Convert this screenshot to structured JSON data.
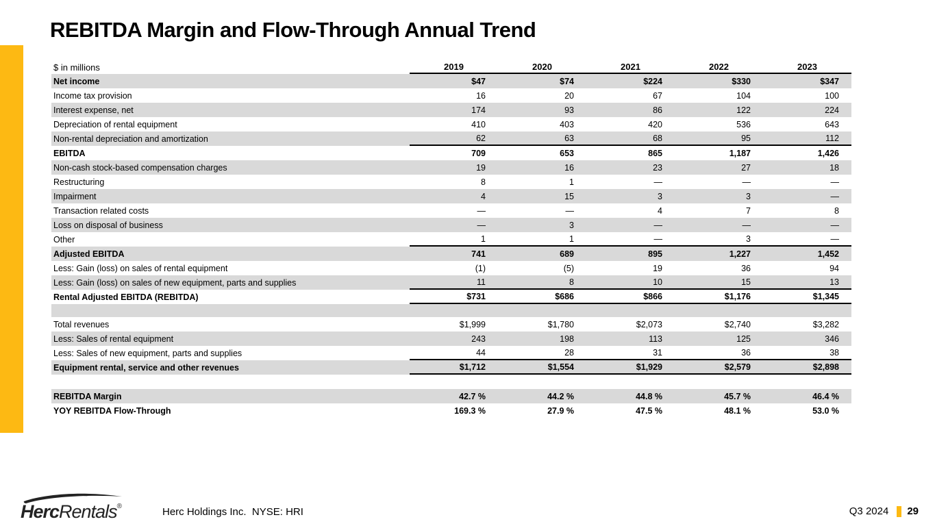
{
  "slide": {
    "title": "REBITDA Margin and Flow-Through Annual Trend",
    "accent_color": "#FDB913",
    "row_shade_color": "#D9D9D9"
  },
  "table": {
    "unit_label": "$ in millions",
    "years": [
      "2019",
      "2020",
      "2021",
      "2022",
      "2023"
    ],
    "rows": [
      {
        "label": "Net income",
        "values": [
          "$47",
          "$74",
          "$224",
          "$330",
          "$347"
        ],
        "bold": true,
        "shaded": true
      },
      {
        "label": "Income tax provision",
        "values": [
          "16",
          "20",
          "67",
          "104",
          "100"
        ]
      },
      {
        "label": "Interest expense, net",
        "values": [
          "174",
          "93",
          "86",
          "122",
          "224"
        ],
        "shaded": true
      },
      {
        "label": "Depreciation of rental equipment",
        "values": [
          "410",
          "403",
          "420",
          "536",
          "643"
        ]
      },
      {
        "label": "Non-rental depreciation and amortization",
        "values": [
          "62",
          "63",
          "68",
          "95",
          "112"
        ],
        "shaded": true,
        "rule_below": true
      },
      {
        "label": "EBITDA",
        "values": [
          "709",
          "653",
          "865",
          "1,187",
          "1,426"
        ],
        "bold": true
      },
      {
        "label": "Non-cash stock-based compensation charges",
        "values": [
          "19",
          "16",
          "23",
          "27",
          "18"
        ],
        "shaded": true
      },
      {
        "label": "Restructuring",
        "values": [
          "8",
          "1",
          "—",
          "—",
          "—"
        ]
      },
      {
        "label": "Impairment",
        "values": [
          "4",
          "15",
          "3",
          "3",
          "—"
        ],
        "shaded": true
      },
      {
        "label": "Transaction related costs",
        "values": [
          "—",
          "—",
          "4",
          "7",
          "8"
        ]
      },
      {
        "label": "Loss on disposal of business",
        "values": [
          "—",
          "3",
          "—",
          "—",
          "—"
        ],
        "shaded": true
      },
      {
        "label": "Other",
        "values": [
          "1",
          "1",
          "—",
          "3",
          "—"
        ],
        "rule_below": true
      },
      {
        "label": "Adjusted EBITDA",
        "values": [
          "741",
          "689",
          "895",
          "1,227",
          "1,452"
        ],
        "bold": true,
        "shaded": true
      },
      {
        "label": "Less: Gain (loss) on sales of rental equipment",
        "values": [
          "(1)",
          "(5)",
          "19",
          "36",
          "94"
        ]
      },
      {
        "label": "Less: Gain (loss) on sales of new equipment, parts and supplies",
        "values": [
          "11",
          "8",
          "10",
          "15",
          "13"
        ],
        "shaded": true,
        "rule_below": true
      },
      {
        "label": "Rental Adjusted EBITDA (REBITDA)",
        "values": [
          "$731",
          "$686",
          "$866",
          "$1,176",
          "$1,345"
        ],
        "bold": true,
        "rule_below": true
      },
      {
        "label": "",
        "values": [
          "",
          "",
          "",
          "",
          ""
        ],
        "shaded": true,
        "spacer": true
      },
      {
        "label": "Total revenues",
        "values": [
          "$1,999",
          "$1,780",
          "$2,073",
          "$2,740",
          "$3,282"
        ]
      },
      {
        "label": "Less: Sales of rental equipment",
        "values": [
          "243",
          "198",
          "113",
          "125",
          "346"
        ],
        "shaded": true
      },
      {
        "label": "Less: Sales of new equipment, parts and supplies",
        "values": [
          "44",
          "28",
          "31",
          "36",
          "38"
        ],
        "rule_below": true
      },
      {
        "label": "Equipment rental, service and other revenues",
        "values": [
          "$1,712",
          "$1,554",
          "$1,929",
          "$2,579",
          "$2,898"
        ],
        "bold": true,
        "shaded": true,
        "rule_below": true
      },
      {
        "label": "",
        "values": [
          "",
          "",
          "",
          "",
          ""
        ],
        "spacer": true
      },
      {
        "label": "REBITDA Margin",
        "values": [
          "42.7 %",
          "44.2 %",
          "44.8 %",
          "45.7 %",
          "46.4 %"
        ],
        "bold": true,
        "shaded": true
      },
      {
        "label": "YOY REBITDA Flow-Through",
        "values": [
          "169.3 %",
          "27.9 %",
          "47.5 %",
          "48.1 %",
          "53.0 %"
        ],
        "bold": true
      }
    ]
  },
  "footer": {
    "logo": {
      "brand_bold": "Herc",
      "brand_italic": "Rentals",
      "registered_mark": "®"
    },
    "company_line": "Herc Holdings Inc.  NYSE: HRI",
    "period": "Q3 2024",
    "page_number": "29"
  }
}
